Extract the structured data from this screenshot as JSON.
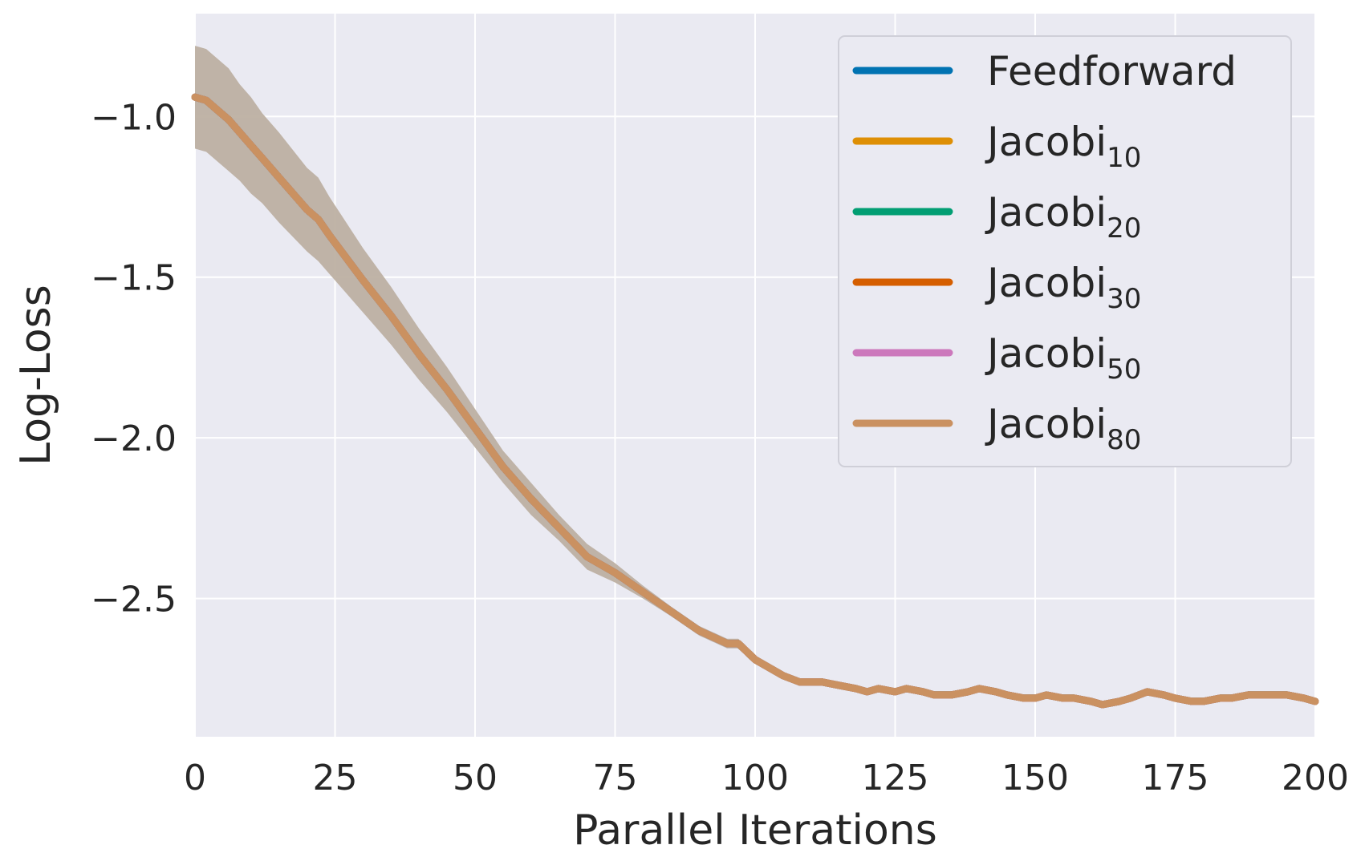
{
  "chart_data": {
    "type": "line",
    "title": "",
    "xlabel": "Parallel Iterations",
    "ylabel": "Log-Loss",
    "xlim": [
      0,
      200
    ],
    "ylim": [
      -2.93,
      -0.68
    ],
    "xticks": [
      0,
      25,
      50,
      75,
      100,
      125,
      150,
      175,
      200
    ],
    "xtick_labels": [
      "0",
      "25",
      "50",
      "75",
      "100",
      "125",
      "150",
      "175",
      "200"
    ],
    "yticks": [
      -1.0,
      -1.5,
      -2.0,
      -2.5
    ],
    "ytick_labels": [
      "−1.0",
      "−1.5",
      "−2.0",
      "−2.5"
    ],
    "grid": true,
    "legend_position": "top-right",
    "legend": [
      {
        "name": "Feedforward",
        "base": "Feedforward",
        "sub": "",
        "color": "#0173b2"
      },
      {
        "name": "Jacobi10",
        "base": "Jacobi",
        "sub": "10",
        "color": "#de8f05"
      },
      {
        "name": "Jacobi20",
        "base": "Jacobi",
        "sub": "20",
        "color": "#029e73"
      },
      {
        "name": "Jacobi30",
        "base": "Jacobi",
        "sub": "30",
        "color": "#d55e00"
      },
      {
        "name": "Jacobi50",
        "base": "Jacobi",
        "sub": "50",
        "color": "#cc78bc"
      },
      {
        "name": "Jacobi80",
        "base": "Jacobi",
        "sub": "80",
        "color": "#ca9161"
      }
    ],
    "note": "All six series overlap; only the Jacobi80 curve is visible on top.",
    "x": [
      0,
      2,
      4,
      6,
      8,
      10,
      12,
      15,
      20,
      22,
      24,
      27,
      30,
      35,
      40,
      45,
      50,
      55,
      60,
      65,
      70,
      75,
      80,
      85,
      90,
      95,
      97,
      100,
      105,
      108,
      110,
      112,
      115,
      118,
      120,
      122,
      125,
      127,
      130,
      132,
      135,
      138,
      140,
      143,
      145,
      148,
      150,
      152,
      155,
      157,
      160,
      162,
      165,
      167,
      170,
      173,
      175,
      178,
      180,
      183,
      185,
      188,
      190,
      193,
      195,
      198,
      200
    ],
    "mean": [
      -0.94,
      -0.95,
      -0.98,
      -1.01,
      -1.05,
      -1.09,
      -1.13,
      -1.19,
      -1.29,
      -1.32,
      -1.37,
      -1.44,
      -1.51,
      -1.62,
      -1.74,
      -1.85,
      -1.97,
      -2.09,
      -2.19,
      -2.28,
      -2.37,
      -2.42,
      -2.48,
      -2.54,
      -2.6,
      -2.64,
      -2.64,
      -2.69,
      -2.74,
      -2.76,
      -2.76,
      -2.76,
      -2.77,
      -2.78,
      -2.79,
      -2.78,
      -2.79,
      -2.78,
      -2.79,
      -2.8,
      -2.8,
      -2.79,
      -2.78,
      -2.79,
      -2.8,
      -2.81,
      -2.81,
      -2.8,
      -2.81,
      -2.81,
      -2.82,
      -2.83,
      -2.82,
      -2.81,
      -2.79,
      -2.8,
      -2.81,
      -2.82,
      -2.82,
      -2.81,
      -2.81,
      -2.8,
      -2.8,
      -2.8,
      -2.8,
      -2.81,
      -2.82
    ],
    "std": [
      0.16,
      0.16,
      0.16,
      0.16,
      0.15,
      0.15,
      0.14,
      0.14,
      0.13,
      0.13,
      0.12,
      0.11,
      0.1,
      0.09,
      0.08,
      0.07,
      0.06,
      0.05,
      0.05,
      0.04,
      0.04,
      0.03,
      0.02,
      0.015,
      0.015,
      0.015,
      0.015,
      0.012,
      0.01,
      0.008,
      0.006,
      0.006,
      0.006,
      0.006,
      0.005,
      0.005,
      0.005,
      0.005,
      0.005,
      0.005,
      0.005,
      0.005,
      0.005,
      0.005,
      0.005,
      0.005,
      0.005,
      0.005,
      0.005,
      0.005,
      0.005,
      0.005,
      0.005,
      0.005,
      0.005,
      0.005,
      0.005,
      0.005,
      0.005,
      0.005,
      0.005,
      0.005,
      0.005,
      0.005,
      0.005,
      0.005,
      0.005
    ]
  }
}
